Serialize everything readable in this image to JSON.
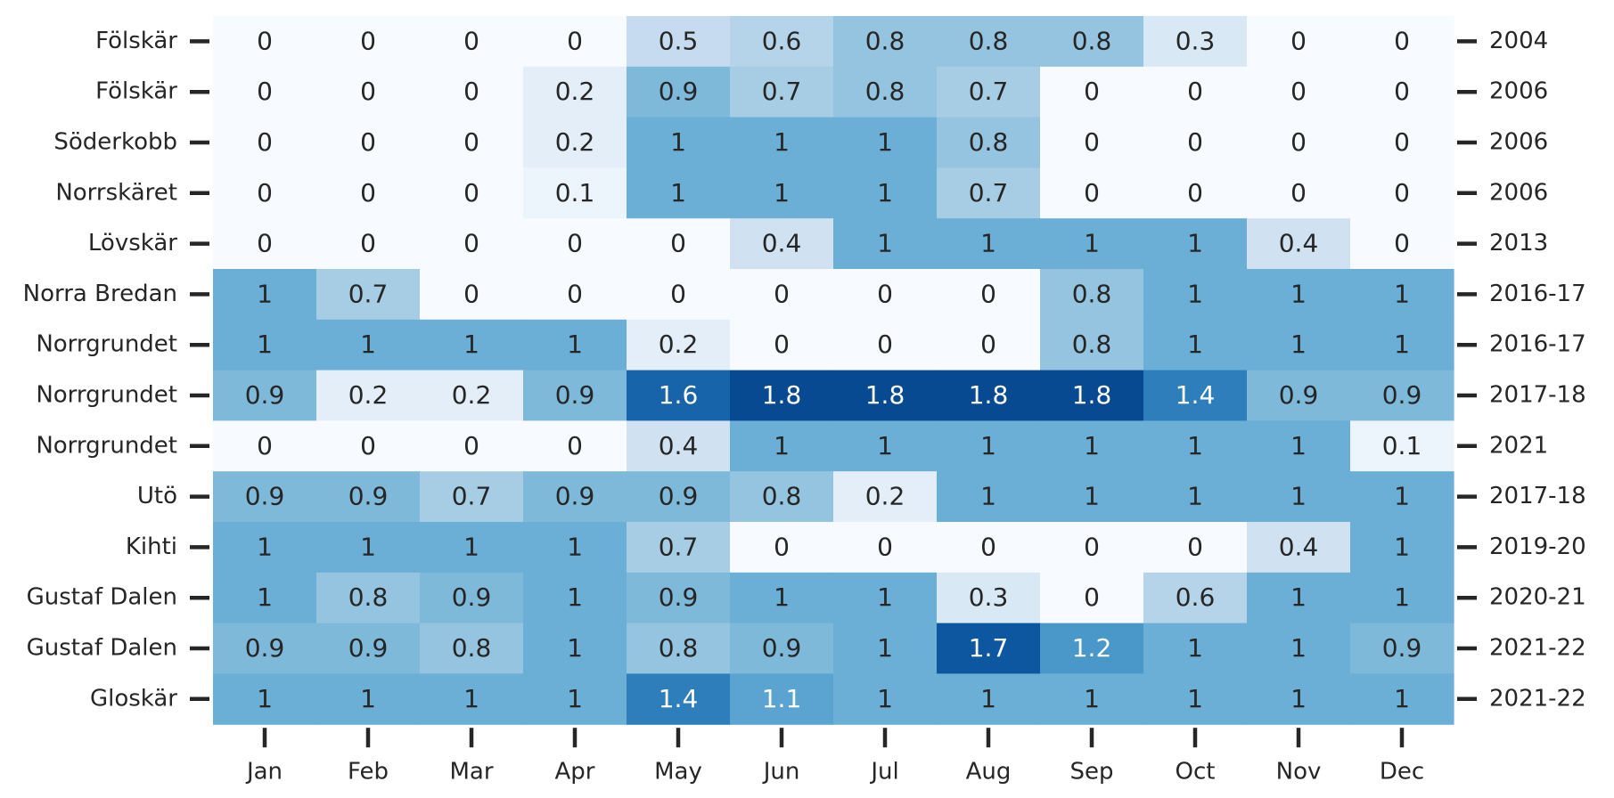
{
  "chart_data": {
    "type": "heatmap",
    "x_categories": [
      "Jan",
      "Feb",
      "Mar",
      "Apr",
      "May",
      "Jun",
      "Jul",
      "Aug",
      "Sep",
      "Oct",
      "Nov",
      "Dec"
    ],
    "y_categories": [
      "Fölskär",
      "Fölskär",
      "Söderkobb ",
      "Norrskäret",
      "Lövskär",
      "Norra Bredan",
      "Norrgrundet",
      "Norrgrundet",
      "Norrgrundet",
      "Utö",
      "Kihti",
      "Gustaf Dalen",
      "Gustaf Dalen",
      "Gloskär"
    ],
    "y_right_categories": [
      "2004",
      "2006",
      "2006",
      "2006",
      "2013",
      "2016-17",
      "2016-17",
      "2017-18",
      "2021",
      "2017-18",
      "2019-20",
      "2020-21",
      "2021-22",
      "2021-22"
    ],
    "values": [
      [
        0,
        0,
        0,
        0,
        0.5,
        0.6,
        0.8,
        0.8,
        0.8,
        0.3,
        0,
        0
      ],
      [
        0,
        0,
        0,
        0.2,
        0.9,
        0.7,
        0.8,
        0.7,
        0,
        0,
        0,
        0
      ],
      [
        0,
        0,
        0,
        0.2,
        1,
        1,
        1,
        0.8,
        0,
        0,
        0,
        0
      ],
      [
        0,
        0,
        0,
        0.1,
        1,
        1,
        1,
        0.7,
        0,
        0,
        0,
        0
      ],
      [
        0,
        0,
        0,
        0,
        0,
        0.4,
        1,
        1,
        1,
        1,
        0.4,
        0
      ],
      [
        1,
        0.7,
        0,
        0,
        0,
        0,
        0,
        0,
        0.8,
        1,
        1,
        1
      ],
      [
        1,
        1,
        1,
        1,
        0.2,
        0,
        0,
        0,
        0.8,
        1,
        1,
        1
      ],
      [
        0.9,
        0.2,
        0.2,
        0.9,
        1.6,
        1.8,
        1.8,
        1.8,
        1.8,
        1.4,
        0.9,
        0.9
      ],
      [
        0,
        0,
        0,
        0,
        0.4,
        1,
        1,
        1,
        1,
        1,
        1,
        0.1
      ],
      [
        0.9,
        0.9,
        0.7,
        0.9,
        0.9,
        0.8,
        0.2,
        1,
        1,
        1,
        1,
        1
      ],
      [
        1,
        1,
        1,
        1,
        0.7,
        0,
        0,
        0,
        0,
        0,
        0.4,
        1
      ],
      [
        1,
        0.8,
        0.9,
        1,
        0.9,
        1,
        1,
        0.3,
        0,
        0.6,
        1,
        1
      ],
      [
        0.9,
        0.9,
        0.8,
        1,
        0.8,
        0.9,
        1,
        1.7,
        1.2,
        1,
        1,
        0.9
      ],
      [
        1,
        1,
        1,
        1,
        1.4,
        1.1,
        1,
        1,
        1,
        1,
        1,
        1
      ]
    ],
    "colormap": "Blues",
    "vmin": 0,
    "vmax": 2,
    "annotations": true,
    "colorbar": false,
    "colors": {
      "low": "#f7fbff",
      "high": "#08306b",
      "text_dark": "#262626",
      "text_light": "#ffffff",
      "tick": "#262626"
    }
  }
}
